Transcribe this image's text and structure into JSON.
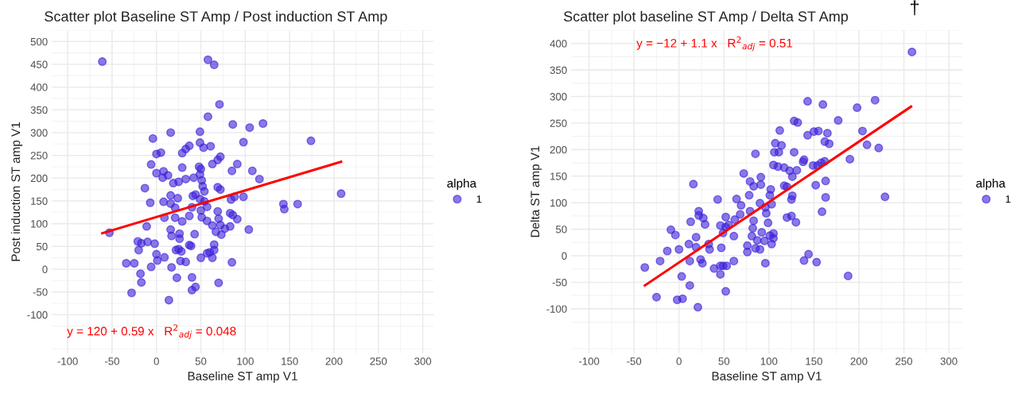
{
  "chart_data": [
    {
      "type": "scatter",
      "title": "Scatter plot Baseline ST Amp / Post induction ST Amp",
      "xlabel": "Baseline ST amp V1",
      "ylabel": "Post induction ST amp V1",
      "legend_title": "alpha",
      "legend": "right",
      "grid": true,
      "xlim": [
        -118,
        312
      ],
      "ylim": [
        -185,
        525
      ],
      "xticks": [
        -100,
        -50,
        0,
        50,
        100,
        150,
        200,
        250,
        300
      ],
      "yticks": [
        -100,
        -50,
        0,
        50,
        100,
        150,
        200,
        250,
        300,
        350,
        400,
        450,
        500
      ],
      "annotations": [
        "y = 120 + 0.59 x   R$^{2}$$_{adj}$ = 0.048"
      ],
      "series": [
        {
          "name": "1",
          "marker": "circle",
          "color": "#3b1fd9",
          "x": [
            -61,
            58,
            65,
            71,
            58,
            86,
            105,
            120,
            98,
            49,
            16,
            -4,
            49,
            61,
            53,
            37,
            33,
            29,
            0,
            5,
            -6,
            29,
            48,
            50,
            72,
            69,
            63,
            91,
            0,
            8,
            13,
            7,
            19,
            25,
            33,
            42,
            49,
            51,
            85,
            108,
            116,
            -13,
            52,
            54,
            69,
            72,
            16,
            24,
            8,
            16,
            -7,
            41,
            44,
            49,
            40,
            54,
            57,
            21,
            9,
            21,
            29,
            37,
            51,
            50,
            69,
            70,
            84,
            88,
            98,
            83,
            86,
            91,
            57,
            63,
            72,
            77,
            83,
            67,
            73,
            104,
            -11,
            16,
            17,
            26,
            26,
            43,
            -53,
            -21,
            -17,
            -10,
            -2,
            -20,
            0,
            1,
            9,
            -6,
            -34,
            -25,
            -18,
            -17,
            -28,
            14,
            17,
            22,
            25,
            28,
            37,
            39,
            27,
            33,
            23,
            40,
            40,
            44,
            50,
            57,
            60,
            63,
            65,
            85,
            70,
            65,
            174,
            143,
            144,
            159,
            208
          ],
          "values": [
            456,
            460,
            449,
            362,
            335,
            318,
            311,
            320,
            279,
            302,
            300,
            287,
            278,
            270,
            267,
            271,
            264,
            255,
            253,
            256,
            230,
            223,
            225,
            220,
            247,
            240,
            231,
            231,
            211,
            215,
            206,
            201,
            189,
            192,
            198,
            201,
            208,
            195,
            216,
            216,
            198,
            178,
            182,
            171,
            180,
            175,
            162,
            156,
            148,
            144,
            146,
            161,
            164,
            154,
            136,
            149,
            137,
            135,
            113,
            113,
            105,
            117,
            114,
            129,
            127,
            111,
            153,
            159,
            159,
            123,
            119,
            110,
            106,
            96,
            97,
            89,
            94,
            82,
            76,
            87,
            94,
            87,
            73,
            78,
            67,
            77,
            80,
            61,
            57,
            60,
            56,
            42,
            33,
            19,
            26,
            5,
            13,
            13,
            -10,
            -29,
            -52,
            -68,
            4,
            42,
            44,
            39,
            53,
            51,
            18,
            16,
            -19,
            -18,
            -46,
            -39,
            25,
            35,
            37,
            25,
            54,
            15,
            -30,
            42,
            282,
            143,
            132,
            143,
            166
          ]
        },
        {
          "type": "line",
          "color": "#ff0000",
          "x": [
            -61,
            208
          ],
          "values": [
            79,
            236
          ]
        }
      ]
    },
    {
      "type": "scatter",
      "title": "Scatter plot baseline ST Amp / Delta ST Amp",
      "xlabel": "Baseline ST amp V1",
      "ylabel": "Delta ST amp V1",
      "legend_title": "alpha",
      "legend": "right",
      "grid": true,
      "xlim": [
        -120,
        315
      ],
      "ylim": [
        -184,
        425
      ],
      "xticks": [
        -100,
        -50,
        0,
        50,
        100,
        150,
        200,
        250,
        300
      ],
      "yticks": [
        -100,
        -50,
        0,
        50,
        100,
        150,
        200,
        250,
        300,
        350,
        400
      ],
      "annotations": [
        "y = −12 + 1.1 x   R$^{2}$$_{adj}$ = 0.51",
        "†"
      ],
      "series": [
        {
          "name": "1",
          "marker": "circle",
          "color": "#3b1fd9",
          "x": [
            -38,
            -25,
            -21,
            -13,
            -9,
            -4,
            0,
            3,
            -2,
            4,
            12,
            12,
            11,
            13,
            16,
            19,
            19,
            22,
            22,
            27,
            29,
            24,
            26,
            21,
            33,
            34,
            39,
            43,
            46,
            46,
            49,
            53,
            47,
            46,
            49,
            52,
            52,
            55,
            52,
            61,
            61,
            62,
            64,
            69,
            68,
            72,
            76,
            76,
            79,
            78,
            79,
            83,
            85,
            81,
            83,
            82,
            85,
            87,
            90,
            90,
            91,
            91,
            92,
            95,
            96,
            97,
            99,
            102,
            103,
            101,
            103,
            105,
            106,
            107,
            112,
            259,
            143,
            160,
            218,
            198,
            177,
            128,
            132,
            143,
            150,
            155,
            165,
            204,
            162,
            167,
            209,
            222,
            114,
            111,
            128,
            190,
            110,
            117,
            123,
            131,
            126,
            138,
            139,
            149,
            154,
            158,
            162,
            163,
            152,
            163,
            229,
            159,
            117,
            120,
            101,
            126,
            125,
            96,
            120,
            125,
            130,
            105,
            105,
            144,
            139,
            153,
            188
          ],
          "values": [
            -22,
            -78,
            -10,
            9,
            49,
            39,
            12,
            -39,
            -83,
            -81,
            -56,
            -10,
            22,
            64,
            135,
            35,
            16,
            84,
            76,
            71,
            59,
            -7,
            -14,
            -97,
            22,
            12,
            -24,
            106,
            -35,
            -19,
            -19,
            -19,
            15,
            57,
            43,
            73,
            54,
            58,
            -67,
            -10,
            37,
            68,
            107,
            95,
            78,
            155,
            7,
            19,
            84,
            114,
            140,
            131,
            192,
            37,
            66,
            52,
            14,
            29,
            12,
            99,
            148,
            134,
            44,
            28,
            -14,
            80,
            62,
            125,
            97,
            38,
            22,
            171,
            195,
            212,
            236,
            384,
            291,
            285,
            293,
            279,
            255,
            254,
            251,
            227,
            234,
            235,
            231,
            235,
            215,
            211,
            209,
            203,
            208,
            195,
            195,
            182,
            168,
            166,
            160,
            161,
            149,
            177,
            181,
            170,
            170,
            175,
            178,
            141,
            133,
            110,
            111,
            83,
            132,
            130,
            114,
            113,
            106,
            91,
            72,
            75,
            63,
            42,
            33,
            3,
            -9,
            -12,
            -38
          ]
        },
        {
          "type": "line",
          "color": "#ff0000",
          "x": [
            -38,
            258
          ],
          "values": [
            -56,
            281
          ]
        }
      ]
    }
  ]
}
